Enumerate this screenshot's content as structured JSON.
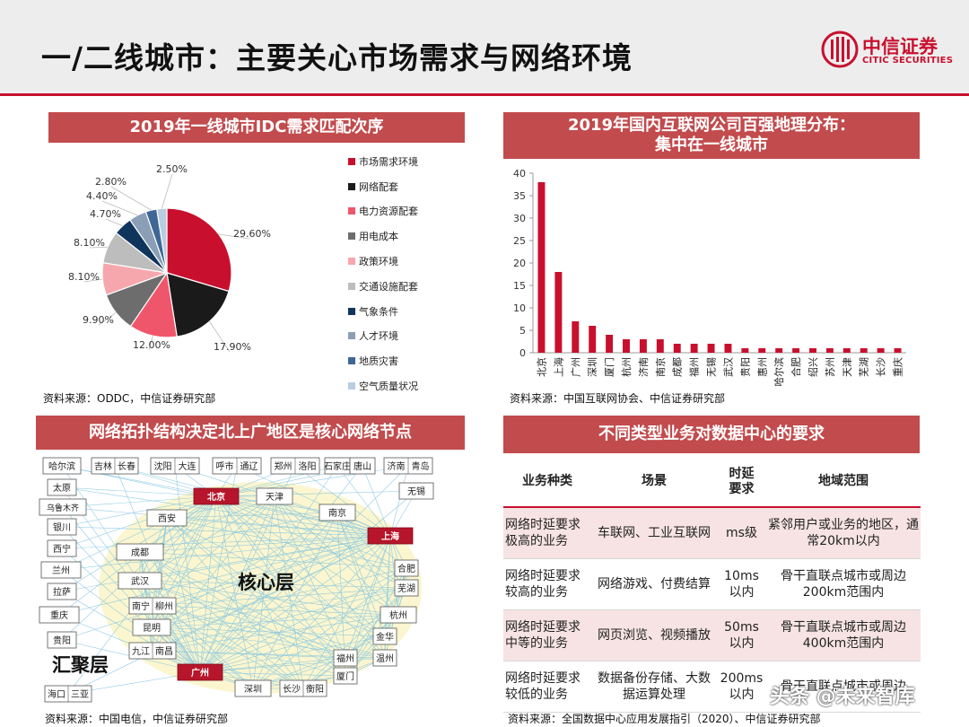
{
  "page": {
    "title": "一/二线城市：主要关心市场需求与网络环境",
    "logo_cn": "中信证券",
    "logo_en": "CITIC SECURITIES",
    "watermark": "头条 @未来智库"
  },
  "colors": {
    "accent": "#c8102e",
    "banner": "#c24b4d",
    "table_shade": "#f7e3e3"
  },
  "pie_panel": {
    "banner": "2019年一线城市IDC需求匹配次序",
    "source": "资料来源：ODDC，中信证券研究部"
  },
  "bar_panel": {
    "banner_line1": "2019年国内互联网公司百强地理分布：",
    "banner_line2": "集中在一线城市",
    "source": "资料来源：中国互联网协会、中信证券研究部"
  },
  "network_panel": {
    "banner": "网络拓扑结构决定北上广地区是核心网络节点",
    "core_label": "核心层",
    "agg_label": "汇聚层",
    "source": "资料来源：中国电信，中信证券研究部",
    "outer_nodes": [
      "哈尔滨",
      "吉林",
      "长春",
      "沈阳",
      "大连",
      "呼市",
      "通辽",
      "郑州",
      "洛阳",
      "石家庄",
      "唐山",
      "济南",
      "青岛",
      "无锡",
      "太原",
      "乌鲁木齐",
      "银川",
      "西宁",
      "兰州",
      "拉萨",
      "重庆",
      "贵阳",
      "海口",
      "三亚"
    ],
    "inner_nodes": [
      "西安",
      "天津",
      "南京",
      "成都",
      "武汉",
      "合肥",
      "芜湖",
      "南宁",
      "柳州",
      "昆明",
      "杭州",
      "九江",
      "南昌",
      "金华",
      "温州",
      "福州",
      "厦门",
      "深圳",
      "长沙",
      "衡阳"
    ],
    "core_nodes": [
      "北京",
      "上海",
      "广州"
    ]
  },
  "table_panel": {
    "banner": "不同类型业务对数据中心的要求",
    "source": "资料来源：全国数据中心应用发展指引（2020）、中信证券研究部",
    "headers": [
      "业务种类",
      "场景",
      "时延要求",
      "地域范围"
    ],
    "rows": [
      [
        "网络时延要求极高的业务",
        "车联网、工业互联网",
        "ms级",
        "紧邻用户或业务的地区，通常20km以内"
      ],
      [
        "网络时延要求较高的业务",
        "网络游戏、付费结算",
        "10ms以内",
        "骨干直联点城市或周边200km范围内"
      ],
      [
        "网络时延要求中等的业务",
        "网页浏览、视频播放",
        "50ms以内",
        "骨干直联点城市或周边400km范围内"
      ],
      [
        "网络时延要求较低的业务",
        "数据备份存储、大数据运算处理",
        "200ms以内",
        "骨干直联点城市或周边"
      ]
    ]
  },
  "chart_data": [
    {
      "type": "pie",
      "title": "2019年一线城市IDC需求匹配次序",
      "legend_position": "right",
      "slices": [
        {
          "label": "市场需求环境",
          "value": 29.6,
          "display": "29.60%",
          "color": "#c8102e"
        },
        {
          "label": "网络配套",
          "value": 17.9,
          "display": "17.90%",
          "color": "#1a1a1a"
        },
        {
          "label": "电力资源配套",
          "value": 12.0,
          "display": "12.00%",
          "color": "#f0566b"
        },
        {
          "label": "用电成本",
          "value": 9.9,
          "display": "9.90%",
          "color": "#6d6d6d"
        },
        {
          "label": "政策环境",
          "value": 8.1,
          "display": "8.10%",
          "color": "#f6a7ad"
        },
        {
          "label": "交通设施配套",
          "value": 8.1,
          "display": "8.10%",
          "color": "#bdbdbd"
        },
        {
          "label": "气象条件",
          "value": 4.7,
          "display": "4.70%",
          "color": "#10355d"
        },
        {
          "label": "人才环境",
          "value": 4.4,
          "display": "4.40%",
          "color": "#8a9fb5"
        },
        {
          "label": "地质灾害",
          "value": 2.8,
          "display": "2.80%",
          "color": "#3e6796"
        },
        {
          "label": "空气质量状况",
          "value": 2.5,
          "display": "2.50%",
          "color": "#b8cde0"
        }
      ]
    },
    {
      "type": "bar",
      "title": "2019年国内互联网公司百强地理分布：集中在一线城市",
      "categories": [
        "北京",
        "上海",
        "广州",
        "深圳",
        "厦门",
        "杭州",
        "济南",
        "南京",
        "成都",
        "福州",
        "无锡",
        "武汉",
        "贵阳",
        "惠州",
        "哈尔滨",
        "合肥",
        "绍兴",
        "苏州",
        "天津",
        "芜湖",
        "长沙",
        "重庆"
      ],
      "values": [
        38,
        18,
        7,
        6,
        4,
        3,
        3,
        3,
        2,
        2,
        2,
        2,
        1,
        1,
        1,
        1,
        1,
        1,
        1,
        1,
        1,
        1
      ],
      "yticks": [
        0,
        5,
        10,
        15,
        20,
        25,
        30,
        35,
        40
      ],
      "ylim": [
        0,
        40
      ],
      "color": "#c8102e",
      "grid": false
    }
  ]
}
